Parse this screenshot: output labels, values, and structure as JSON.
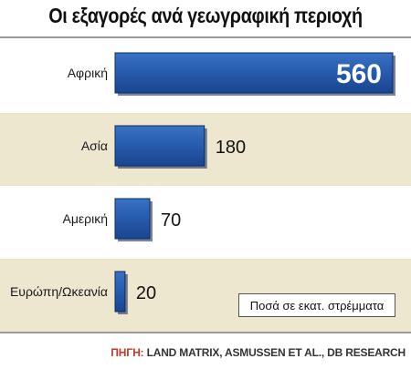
{
  "chart_data": {
    "type": "bar",
    "orientation": "horizontal",
    "title": "Οι εξαγορές ανά γεωγραφική περιοχή",
    "categories": [
      "Αφρική",
      "Ασία",
      "Αμερική",
      "Ευρώπη/Ωκεανία"
    ],
    "values": [
      560,
      180,
      70,
      20
    ],
    "unit_note": "Ποσά σε εκατ. στρέμματα",
    "xlim": [
      0,
      560
    ],
    "grid": false,
    "colors": {
      "bar": "#2558a8",
      "bar_edge": "#0d2c66",
      "band_alt": "#ede7cf",
      "band_plain": "#ffffff"
    }
  },
  "source": {
    "key": "ΠΗΓΗ:",
    "text": "LAND MATRIX, ASMUSSEN ET AL., DB RESEARCH"
  }
}
